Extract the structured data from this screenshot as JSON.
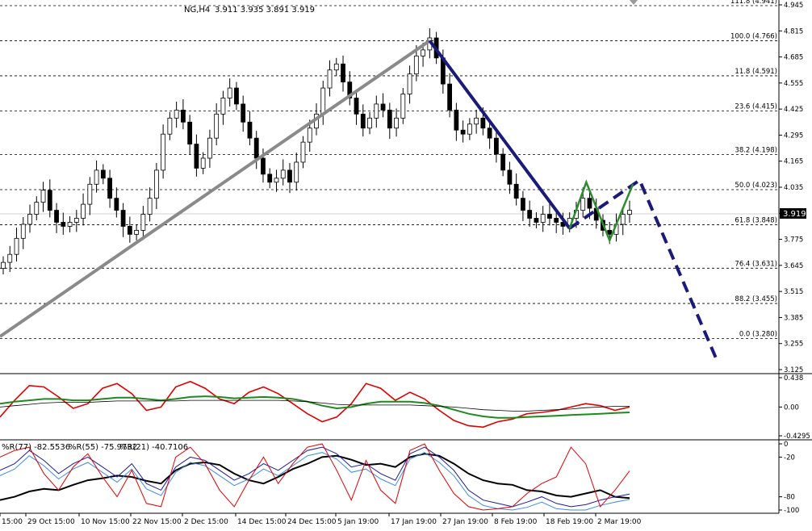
{
  "header": {
    "symbol": "NG,H4",
    "ohlc": "3.911 3.935 3.891 3.919"
  },
  "indicator_labels": {
    "williams": [
      "%R(77) -82.5536",
      "%R(55) -75.9732",
      "%R(21) -40.7106"
    ]
  },
  "current_price": "3.919",
  "colors": {
    "pitchfork_primary": "#1a1a7a",
    "pitchfork_green": "#2e8b2e",
    "diagonal_gray": "#8a8a8a",
    "osc_red": "#e00000",
    "osc_green": "#1e8a1e",
    "osc_blue": "#1a1aa0",
    "osc_lightblue": "#3a8ee6"
  },
  "chart_data": [
    {
      "type": "candlestick",
      "panel": "price",
      "ylim": [
        3.125,
        4.945
      ],
      "y_ticks": [
        "4.945",
        "4.815",
        "4.685",
        "4.555",
        "4.425",
        "4.295",
        "4.165",
        "4.035",
        "3.905",
        "3.775",
        "3.645",
        "3.515",
        "3.385",
        "3.255",
        "3.125"
      ],
      "x_ticks": [
        "15:00",
        "29 Oct 15:00",
        "10 Nov 15:00",
        "22 Nov 15:00",
        "2 Dec 15:00",
        "14 Dec 15:00",
        "24 Dec 15:00",
        "5 Jan 19:00",
        "17 Jan 19:00",
        "27 Jan 19:00",
        "8 Feb 19:00",
        "18 Feb 19:00",
        "2 Mar 19:00"
      ],
      "fib_levels": [
        {
          "label": "111.8 (4.941)",
          "value": 4.941
        },
        {
          "label": "100.0 (4.766)",
          "value": 4.766
        },
        {
          "label": "11.8 (4.591)",
          "value": 4.591
        },
        {
          "label": "23.6 (4.415)",
          "value": 4.415
        },
        {
          "label": "38.2 (4.198)",
          "value": 4.198
        },
        {
          "label": "50.0 (4.023)",
          "value": 4.023
        },
        {
          "label": "61.8 (3.848)",
          "value": 3.848
        },
        {
          "label": "76.4 (3.631)",
          "value": 3.631
        },
        {
          "label": "88.2 (3.455)",
          "value": 3.455
        },
        {
          "label": "0.0 (3.280)",
          "value": 3.28
        }
      ],
      "closes": [
        3.66,
        3.7,
        3.78,
        3.85,
        3.9,
        3.96,
        4.02,
        3.92,
        3.86,
        3.84,
        3.86,
        3.88,
        3.95,
        4.05,
        4.12,
        4.08,
        3.98,
        3.92,
        3.84,
        3.8,
        3.82,
        3.9,
        3.98,
        4.12,
        4.3,
        4.38,
        4.42,
        4.36,
        4.25,
        4.13,
        4.18,
        4.28,
        4.4,
        4.48,
        4.53,
        4.45,
        4.36,
        4.28,
        4.18,
        4.1,
        4.06,
        4.08,
        4.12,
        4.06,
        4.16,
        4.26,
        4.33,
        4.4,
        4.53,
        4.62,
        4.65,
        4.56,
        4.48,
        4.4,
        4.33,
        4.38,
        4.45,
        4.42,
        4.33,
        4.38,
        4.5,
        4.6,
        4.69,
        4.72,
        4.78,
        4.68,
        4.55,
        4.42,
        4.32,
        4.3,
        4.35,
        4.38,
        4.33,
        4.28,
        4.2,
        4.12,
        4.05,
        3.98,
        3.92,
        3.88,
        3.86,
        3.9,
        3.88,
        3.86,
        3.84,
        3.88,
        3.92,
        3.98,
        3.93,
        3.87,
        3.82,
        3.8,
        3.85,
        3.9,
        3.92
      ]
    },
    {
      "type": "line",
      "panel": "oscillator",
      "ylim": [
        -0.429,
        0.438
      ],
      "y_ticks": [
        "0.438",
        "0.00",
        "-0.4295"
      ],
      "series": [
        {
          "name": "",
          "values": [
            -0.15,
            0.1,
            0.32,
            0.3,
            0.15,
            -0.02,
            0.05,
            0.28,
            0.35,
            0.2,
            -0.05,
            0.0,
            0.3,
            0.38,
            0.28,
            0.12,
            0.05,
            0.22,
            0.3,
            0.2,
            0.05,
            -0.1,
            -0.22,
            -0.15,
            0.05,
            0.35,
            0.28,
            0.1,
            0.22,
            0.12,
            -0.05,
            -0.2,
            -0.28,
            -0.3,
            -0.22,
            -0.18,
            -0.1,
            -0.08,
            -0.05,
            0.0,
            0.05,
            0.02,
            -0.05,
            0.0
          ]
        },
        {
          "name": "",
          "values": [
            0.05,
            0.08,
            0.1,
            0.12,
            0.12,
            0.1,
            0.1,
            0.12,
            0.14,
            0.14,
            0.12,
            0.1,
            0.12,
            0.15,
            0.16,
            0.15,
            0.13,
            0.14,
            0.15,
            0.14,
            0.12,
            0.08,
            0.02,
            -0.02,
            0.0,
            0.05,
            0.08,
            0.08,
            0.08,
            0.06,
            0.02,
            -0.04,
            -0.1,
            -0.14,
            -0.16,
            -0.16,
            -0.15,
            -0.14,
            -0.13,
            -0.12,
            -0.11,
            -0.1,
            -0.09,
            -0.08
          ]
        },
        {
          "name": "",
          "values": [
            0.0,
            0.02,
            0.04,
            0.06,
            0.07,
            0.07,
            0.07,
            0.08,
            0.09,
            0.09,
            0.09,
            0.09,
            0.09,
            0.1,
            0.1,
            0.1,
            0.1,
            0.1,
            0.1,
            0.1,
            0.09,
            0.08,
            0.06,
            0.04,
            0.03,
            0.03,
            0.03,
            0.03,
            0.03,
            0.02,
            0.01,
            0.0,
            -0.02,
            -0.04,
            -0.05,
            -0.06,
            -0.06,
            -0.05,
            -0.04,
            -0.03,
            -0.01,
            0.0,
            0.01,
            0.01
          ]
        }
      ]
    },
    {
      "type": "line",
      "panel": "williams",
      "ylim": [
        -100,
        0
      ],
      "y_ticks": [
        "0",
        "-20",
        "-80",
        "-100"
      ],
      "series": [
        {
          "name": "%R(77)",
          "values": [
            -85,
            -80,
            -72,
            -68,
            -70,
            -62,
            -55,
            -52,
            -48,
            -50,
            -56,
            -60,
            -40,
            -30,
            -28,
            -32,
            -45,
            -55,
            -60,
            -50,
            -38,
            -30,
            -20,
            -18,
            -24,
            -32,
            -30,
            -35,
            -20,
            -15,
            -18,
            -30,
            -45,
            -55,
            -60,
            -62,
            -70,
            -72,
            -78,
            -80,
            -75,
            -70,
            -80,
            -82
          ]
        },
        {
          "name": "%R(55)",
          "values": [
            -40,
            -30,
            -10,
            -25,
            -45,
            -30,
            -20,
            -35,
            -50,
            -30,
            -60,
            -70,
            -35,
            -20,
            -25,
            -40,
            -55,
            -45,
            -30,
            -40,
            -25,
            -10,
            -5,
            -15,
            -35,
            -30,
            -45,
            -55,
            -15,
            -5,
            -20,
            -40,
            -70,
            -85,
            -90,
            -95,
            -88,
            -80,
            -90,
            -95,
            -92,
            -85,
            -80,
            -76
          ]
        },
        {
          "name": "%R(21)",
          "values": [
            -20,
            -10,
            -5,
            -45,
            -70,
            -35,
            -15,
            -50,
            -80,
            -40,
            -90,
            -95,
            -20,
            -5,
            -30,
            -70,
            -95,
            -55,
            -20,
            -60,
            -30,
            -5,
            0,
            -40,
            -85,
            -25,
            -70,
            -90,
            -10,
            0,
            -40,
            -75,
            -95,
            -100,
            -98,
            -95,
            -75,
            -60,
            -50,
            -5,
            -30,
            -95,
            -70,
            -41
          ]
        }
      ]
    }
  ]
}
